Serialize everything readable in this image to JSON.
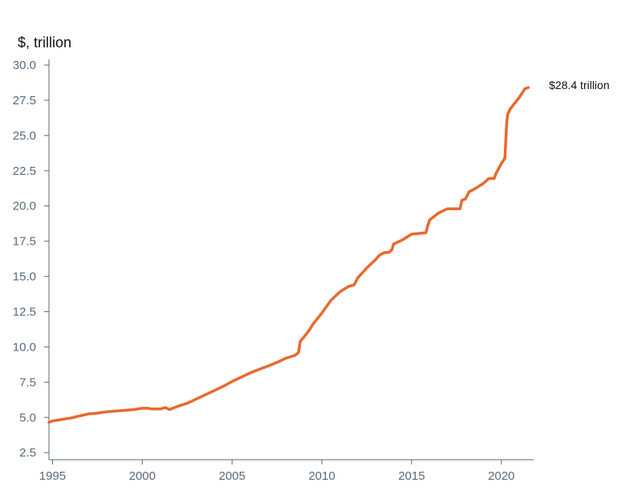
{
  "chart_data": {
    "type": "line",
    "title": "",
    "xlabel": "",
    "ylabel": "$, trillion",
    "xlim": [
      1994.8,
      2021.8
    ],
    "ylim": [
      2.0,
      30.4
    ],
    "x_ticks": [
      "1995",
      "2000",
      "2005",
      "2010",
      "2015",
      "2020"
    ],
    "y_ticks": [
      "2.5",
      "5.0",
      "7.5",
      "10.0",
      "12.5",
      "15.0",
      "17.5",
      "20.0",
      "22.5",
      "25.0",
      "27.5",
      "30.0"
    ],
    "grid": false,
    "legend": "none",
    "end_label": "$28.4 trillion",
    "series": [
      {
        "color": "#e8692e",
        "x": [
          1994.8,
          1995.0,
          1995.5,
          1996.0,
          1996.5,
          1997.0,
          1997.5,
          1998.0,
          1998.5,
          1999.0,
          1999.5,
          2000.0,
          2000.3,
          2000.5,
          2001.0,
          2001.3,
          2001.5,
          2002.0,
          2002.5,
          2003.0,
          2003.5,
          2004.0,
          2004.5,
          2005.0,
          2005.5,
          2006.0,
          2006.5,
          2007.0,
          2007.5,
          2008.0,
          2008.5,
          2008.7,
          2008.75,
          2008.8,
          2009.0,
          2009.3,
          2009.5,
          2010.0,
          2010.5,
          2011.0,
          2011.5,
          2011.8,
          2012.0,
          2012.5,
          2013.0,
          2013.2,
          2013.5,
          2013.75,
          2013.9,
          2014.0,
          2014.5,
          2015.0,
          2015.8,
          2015.9,
          2016.0,
          2016.5,
          2017.0,
          2017.2,
          2017.7,
          2017.8,
          2018.0,
          2018.2,
          2018.5,
          2019.0,
          2019.3,
          2019.6,
          2019.7,
          2020.0,
          2020.2,
          2020.25,
          2020.3,
          2020.35,
          2020.5,
          2021.0,
          2021.3,
          2021.5
        ],
        "y": [
          4.65,
          4.75,
          4.85,
          4.95,
          5.1,
          5.25,
          5.3,
          5.4,
          5.45,
          5.5,
          5.55,
          5.65,
          5.65,
          5.6,
          5.6,
          5.7,
          5.55,
          5.8,
          6.0,
          6.3,
          6.6,
          6.9,
          7.2,
          7.55,
          7.85,
          8.15,
          8.4,
          8.65,
          8.9,
          9.2,
          9.4,
          9.6,
          10.0,
          10.4,
          10.7,
          11.2,
          11.6,
          12.4,
          13.3,
          13.9,
          14.3,
          14.4,
          14.9,
          15.6,
          16.2,
          16.5,
          16.7,
          16.7,
          16.9,
          17.3,
          17.6,
          18.0,
          18.1,
          18.6,
          19.0,
          19.5,
          19.8,
          19.8,
          19.8,
          20.4,
          20.5,
          21.0,
          21.2,
          21.6,
          21.95,
          21.95,
          22.3,
          23.0,
          23.4,
          24.7,
          25.9,
          26.5,
          26.9,
          27.7,
          28.3,
          28.4
        ]
      }
    ]
  }
}
